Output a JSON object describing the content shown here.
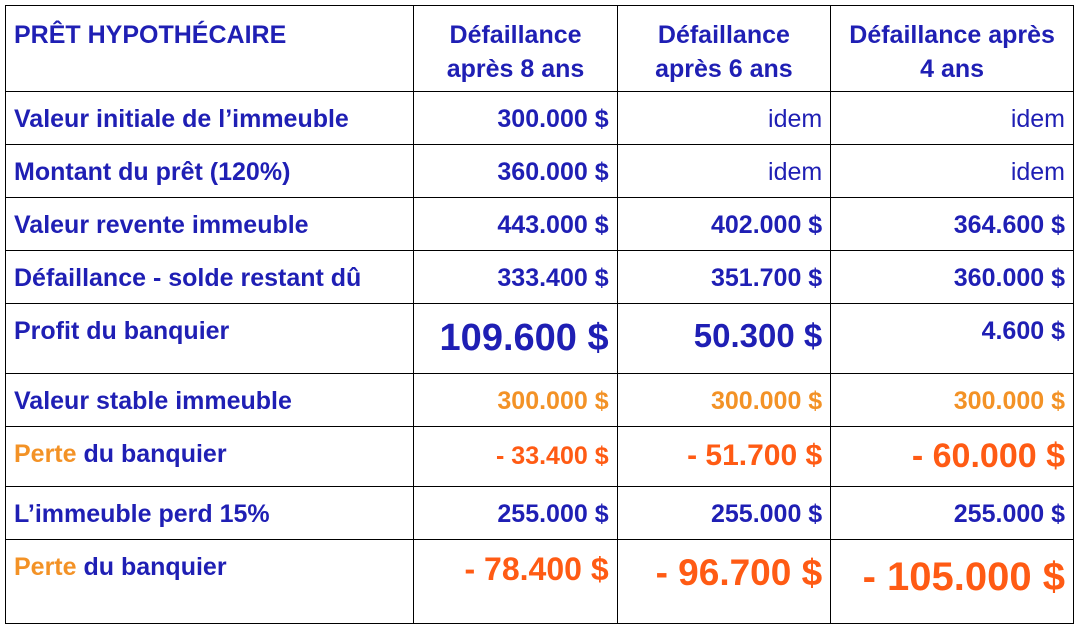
{
  "header": {
    "title": "PRÊT HYPOTHÉCAIRE",
    "col1": "Défaillance après 8 ans",
    "col2": "Défaillance après 6 ans",
    "col3": "Défaillance après 4 ans"
  },
  "rows": [
    {
      "label": "Valeur initiale de l’immeuble",
      "v1": "300.000 $",
      "v2": "idem",
      "v3": "idem"
    },
    {
      "label": "Montant du prêt (120%)",
      "v1": "360.000 $",
      "v2": "idem",
      "v3": "idem"
    },
    {
      "label": "Valeur revente immeuble",
      "v1": "443.000 $",
      "v2": "402.000 $",
      "v3": "364.600 $"
    },
    {
      "label": "Défaillance - solde restant dû",
      "v1": "333.400 $",
      "v2": "351.700 $",
      "v3": "360.000 $"
    },
    {
      "label": "Profit du banquier",
      "v1": "109.600 $",
      "v2": "50.300 $",
      "v3": "4.600 $"
    },
    {
      "label": "Valeur stable immeuble",
      "v1": "300.000 $",
      "v2": "300.000 $",
      "v3": "300.000 $"
    },
    {
      "label_orange": "Perte",
      "label_rest": " du banquier",
      "v1": "- 33.400 $",
      "v2": "- 51.700 $",
      "v3": "- 60.000 $"
    },
    {
      "label": "L’immeuble perd 15%",
      "v1": "255.000 $",
      "v2": "255.000 $",
      "v3": "255.000 $"
    },
    {
      "label_orange": "Perte",
      "label_rest": " du banquier",
      "v1": "- 78.400 $",
      "v2": "- 96.700 $",
      "v3": "- 105.000 $"
    }
  ],
  "colors": {
    "text_blue": "#1f1fb4",
    "orange": "#f39226",
    "red": "#ff5b14",
    "border": "#000000"
  }
}
